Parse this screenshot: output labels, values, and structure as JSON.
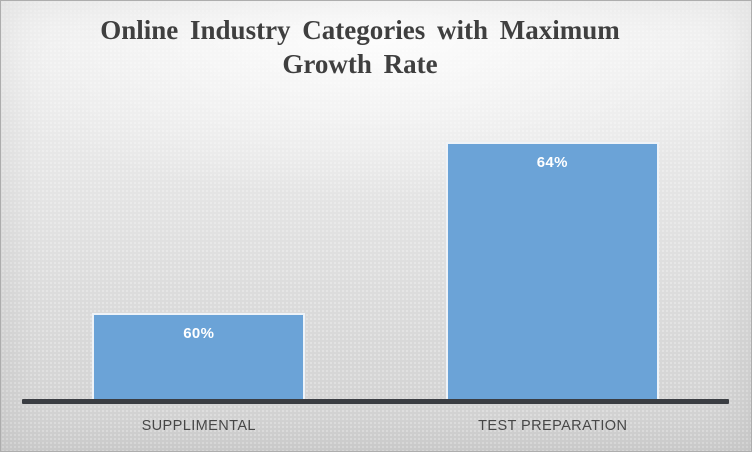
{
  "title": "Online Industry Categories with Maximum Growth Rate",
  "colors": {
    "bar_fill": "#6ba3d7",
    "bar_border": "#eef3f8",
    "axis_line": "#3a3d42",
    "title_text": "#3f3f3f",
    "category_text": "#474747",
    "data_label_text": "#ffffff"
  },
  "chart_data": {
    "type": "bar",
    "title": "Online Industry Categories with Maximum Growth Rate",
    "categories": [
      "SUPPLIMENTAL",
      "TEST PREPARATION"
    ],
    "values": [
      60,
      64
    ],
    "data_labels": [
      "60%",
      "64%"
    ],
    "unit": "%",
    "xlabel": "",
    "ylabel": "",
    "ylim": [
      58,
      65
    ],
    "grid": false,
    "legend": false,
    "y_axis_visible": false,
    "data_label_position": "inside-top",
    "bar_color": "#6ba3d7"
  }
}
